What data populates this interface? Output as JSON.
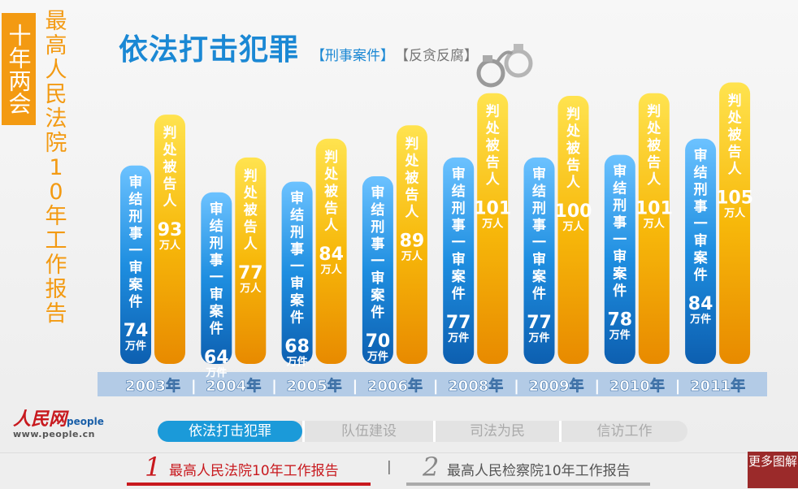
{
  "side_badge": "十年两会",
  "side_title": "最高人民法院10年工作报告",
  "main_title": "依法打击犯罪",
  "tags": [
    "【刑事案件】",
    "【反贪反腐】"
  ],
  "icons": {
    "handcuffs": "handcuffs-icon",
    "logo": "people-daily-logo"
  },
  "logo": {
    "name": "人民网",
    "sub": "people",
    "url": "www.people.cn"
  },
  "colors": {
    "blue_bar": "#1e8ee0",
    "yellow_bar": "#f7b80a",
    "title_blue": "#1b88d4",
    "orange": "#f39a12"
  },
  "chart_data": {
    "type": "bar",
    "categories": [
      "2003年",
      "2004年",
      "2005年",
      "2006年",
      "2008年",
      "2009年",
      "2010年",
      "2011年"
    ],
    "unit": "万件 / 万人",
    "series": [
      {
        "name": "审结刑事一审案件",
        "unit": "万件",
        "values": [
          74,
          64,
          68,
          70,
          77,
          77,
          78,
          84
        ]
      },
      {
        "name": "判处被告人",
        "unit": "万人",
        "values": [
          93,
          77,
          84,
          89,
          101,
          100,
          101,
          105
        ]
      }
    ]
  },
  "tabs": [
    {
      "label": "依法打击犯罪",
      "active": true
    },
    {
      "label": "队伍建设",
      "active": false
    },
    {
      "label": "司法为民",
      "active": false
    },
    {
      "label": "信访工作",
      "active": false
    }
  ],
  "footer": {
    "items": [
      {
        "num": "1",
        "label": "最高人民法院10年工作报告",
        "active": true
      },
      {
        "num": "2",
        "label": "最高人民检察院10年工作报告",
        "active": false
      }
    ],
    "separator": "|",
    "more": "更多图解"
  }
}
